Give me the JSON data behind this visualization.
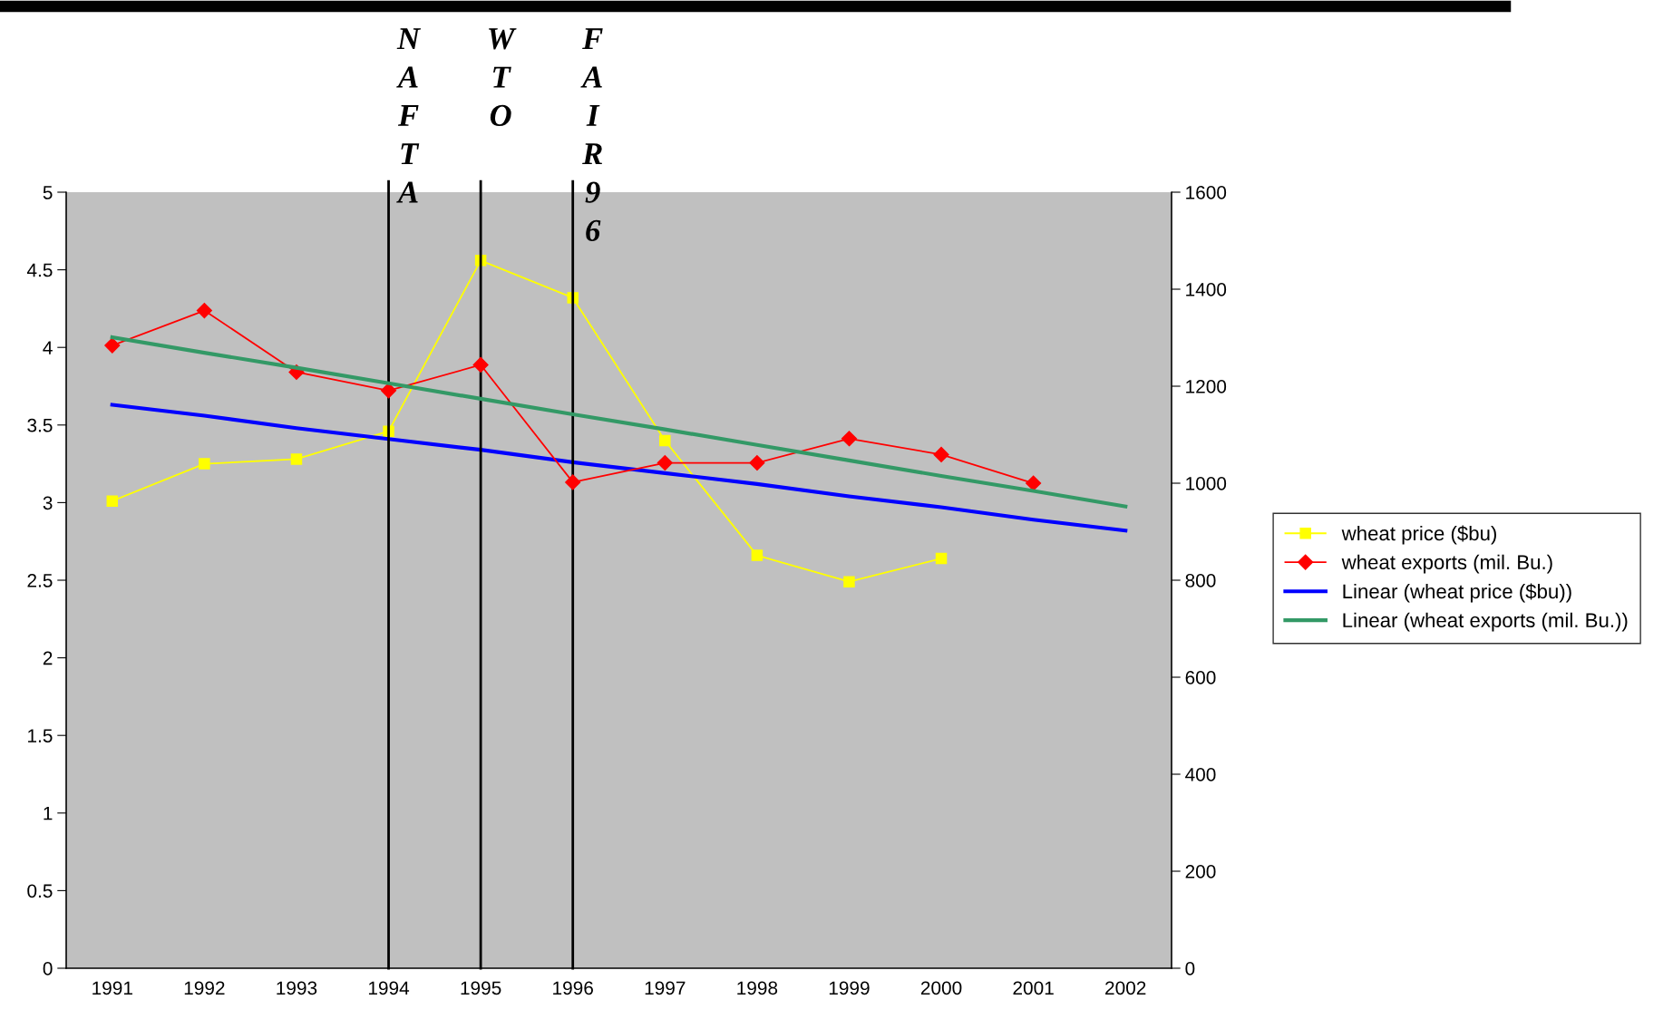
{
  "chart_data": {
    "type": "line",
    "categories": [
      "1991",
      "1992",
      "1993",
      "1994",
      "1995",
      "1996",
      "1997",
      "1998",
      "1999",
      "2000",
      "2001",
      "2002"
    ],
    "series": [
      {
        "name": "wheat price ($bu)",
        "color": "#ffff00",
        "marker": "square",
        "values": [
          3.01,
          3.25,
          3.28,
          3.46,
          4.56,
          4.32,
          3.4,
          2.66,
          2.49,
          2.64,
          null,
          null
        ]
      },
      {
        "name": "wheat exports (mil. Bu.)",
        "color": "#ff0000",
        "marker": "diamond",
        "axis": "y2",
        "values": [
          1284,
          1356,
          1229,
          1191,
          1244,
          1002,
          1042,
          1042,
          1092,
          1059,
          1000,
          null
        ]
      },
      {
        "name": "Linear (wheat price ($bu))",
        "color": "#0000ff",
        "marker": "none",
        "values": [
          3.63,
          3.56,
          3.48,
          3.41,
          3.34,
          3.26,
          3.19,
          3.12,
          3.04,
          2.97,
          2.89,
          2.82
        ]
      },
      {
        "name": "Linear (wheat exports (mil. Bu.))",
        "color": "#339966",
        "marker": "none",
        "axis": "y2",
        "values": [
          1301,
          1269,
          1238,
          1206,
          1174,
          1142,
          1111,
          1079,
          1047,
          1015,
          984,
          952
        ]
      }
    ],
    "ylim": [
      0,
      5
    ],
    "yticks": [
      0,
      0.5,
      1,
      1.5,
      2,
      2.5,
      3,
      3.5,
      4,
      4.5,
      5
    ],
    "y2lim": [
      0,
      1600
    ],
    "y2ticks": [
      0,
      200,
      400,
      600,
      800,
      1000,
      1200,
      1400,
      1600
    ],
    "ref_lines": [
      {
        "axis": "x",
        "value": "1994",
        "label": "NAFTA",
        "color": "#000000"
      },
      {
        "axis": "x",
        "value": "1995",
        "label": "WTO",
        "color": "#000000"
      },
      {
        "axis": "x",
        "value": "1996",
        "label": "FAIR96",
        "color": "#000000"
      }
    ],
    "grid": false,
    "legend": "right"
  }
}
